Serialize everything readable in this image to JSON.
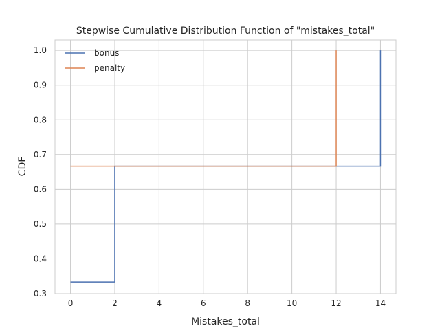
{
  "chart_data": {
    "type": "line",
    "step": "post",
    "title": "Stepwise Cumulative Distribution Function of \"mistakes_total\"",
    "xlabel": "Mistakes_total",
    "ylabel": "CDF",
    "xlim": [
      -0.7,
      14.7
    ],
    "ylim": [
      0.3,
      1.03
    ],
    "xticks": [
      0,
      2,
      4,
      6,
      8,
      10,
      12,
      14
    ],
    "yticks": [
      0.3,
      0.4,
      0.5,
      0.6,
      0.7,
      0.8,
      0.9,
      1.0
    ],
    "grid": true,
    "legend_position": "top-left",
    "series": [
      {
        "name": "bonus",
        "color": "#4c72b0",
        "x": [
          0,
          2,
          14
        ],
        "y": [
          0.3333,
          0.6667,
          1.0
        ]
      },
      {
        "name": "penalty",
        "color": "#dd8452",
        "x": [
          0,
          12
        ],
        "y": [
          0.6667,
          1.0
        ]
      }
    ]
  }
}
